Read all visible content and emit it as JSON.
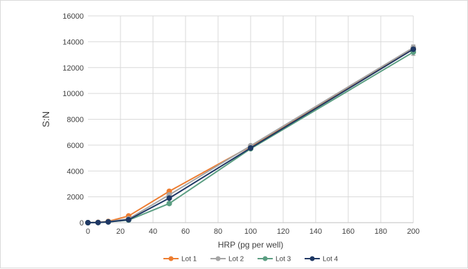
{
  "chart_data": {
    "type": "line",
    "title": "",
    "xlabel": "HRP (pg per well)",
    "ylabel": "S:N",
    "xlim": [
      0,
      200
    ],
    "ylim": [
      0,
      16000
    ],
    "x_ticks": [
      0,
      20,
      40,
      60,
      80,
      100,
      120,
      140,
      160,
      180,
      200
    ],
    "y_ticks": [
      0,
      2000,
      4000,
      6000,
      8000,
      10000,
      12000,
      14000,
      16000
    ],
    "grid": "vertical-and-horizontal",
    "legend_position": "bottom",
    "series": [
      {
        "name": "Lot 1",
        "color": "#ED7D31",
        "x": [
          0,
          6.25,
          12.5,
          25,
          50,
          100,
          200
        ],
        "y": [
          0,
          20,
          100,
          520,
          2430,
          5900,
          13450
        ],
        "error": [
          0,
          0,
          0,
          0,
          0,
          0,
          200
        ]
      },
      {
        "name": "Lot 2",
        "color": "#A5A5A5",
        "x": [
          0,
          6.25,
          12.5,
          25,
          50,
          100,
          200
        ],
        "y": [
          0,
          15,
          80,
          300,
          2150,
          5950,
          13550
        ],
        "error": [
          0,
          0,
          0,
          0,
          0,
          0,
          200
        ]
      },
      {
        "name": "Lot 3",
        "color": "#5B9E82",
        "x": [
          0,
          6.25,
          12.5,
          25,
          50,
          100,
          200
        ],
        "y": [
          0,
          10,
          60,
          200,
          1480,
          5720,
          13200
        ],
        "error": [
          0,
          0,
          0,
          0,
          0,
          0,
          250
        ]
      },
      {
        "name": "Lot 4",
        "color": "#1F3864",
        "x": [
          0,
          6.25,
          12.5,
          25,
          50,
          100,
          200
        ],
        "y": [
          0,
          10,
          60,
          230,
          1900,
          5780,
          13420
        ],
        "error": [
          0,
          0,
          0,
          0,
          0,
          0,
          150
        ]
      }
    ]
  }
}
